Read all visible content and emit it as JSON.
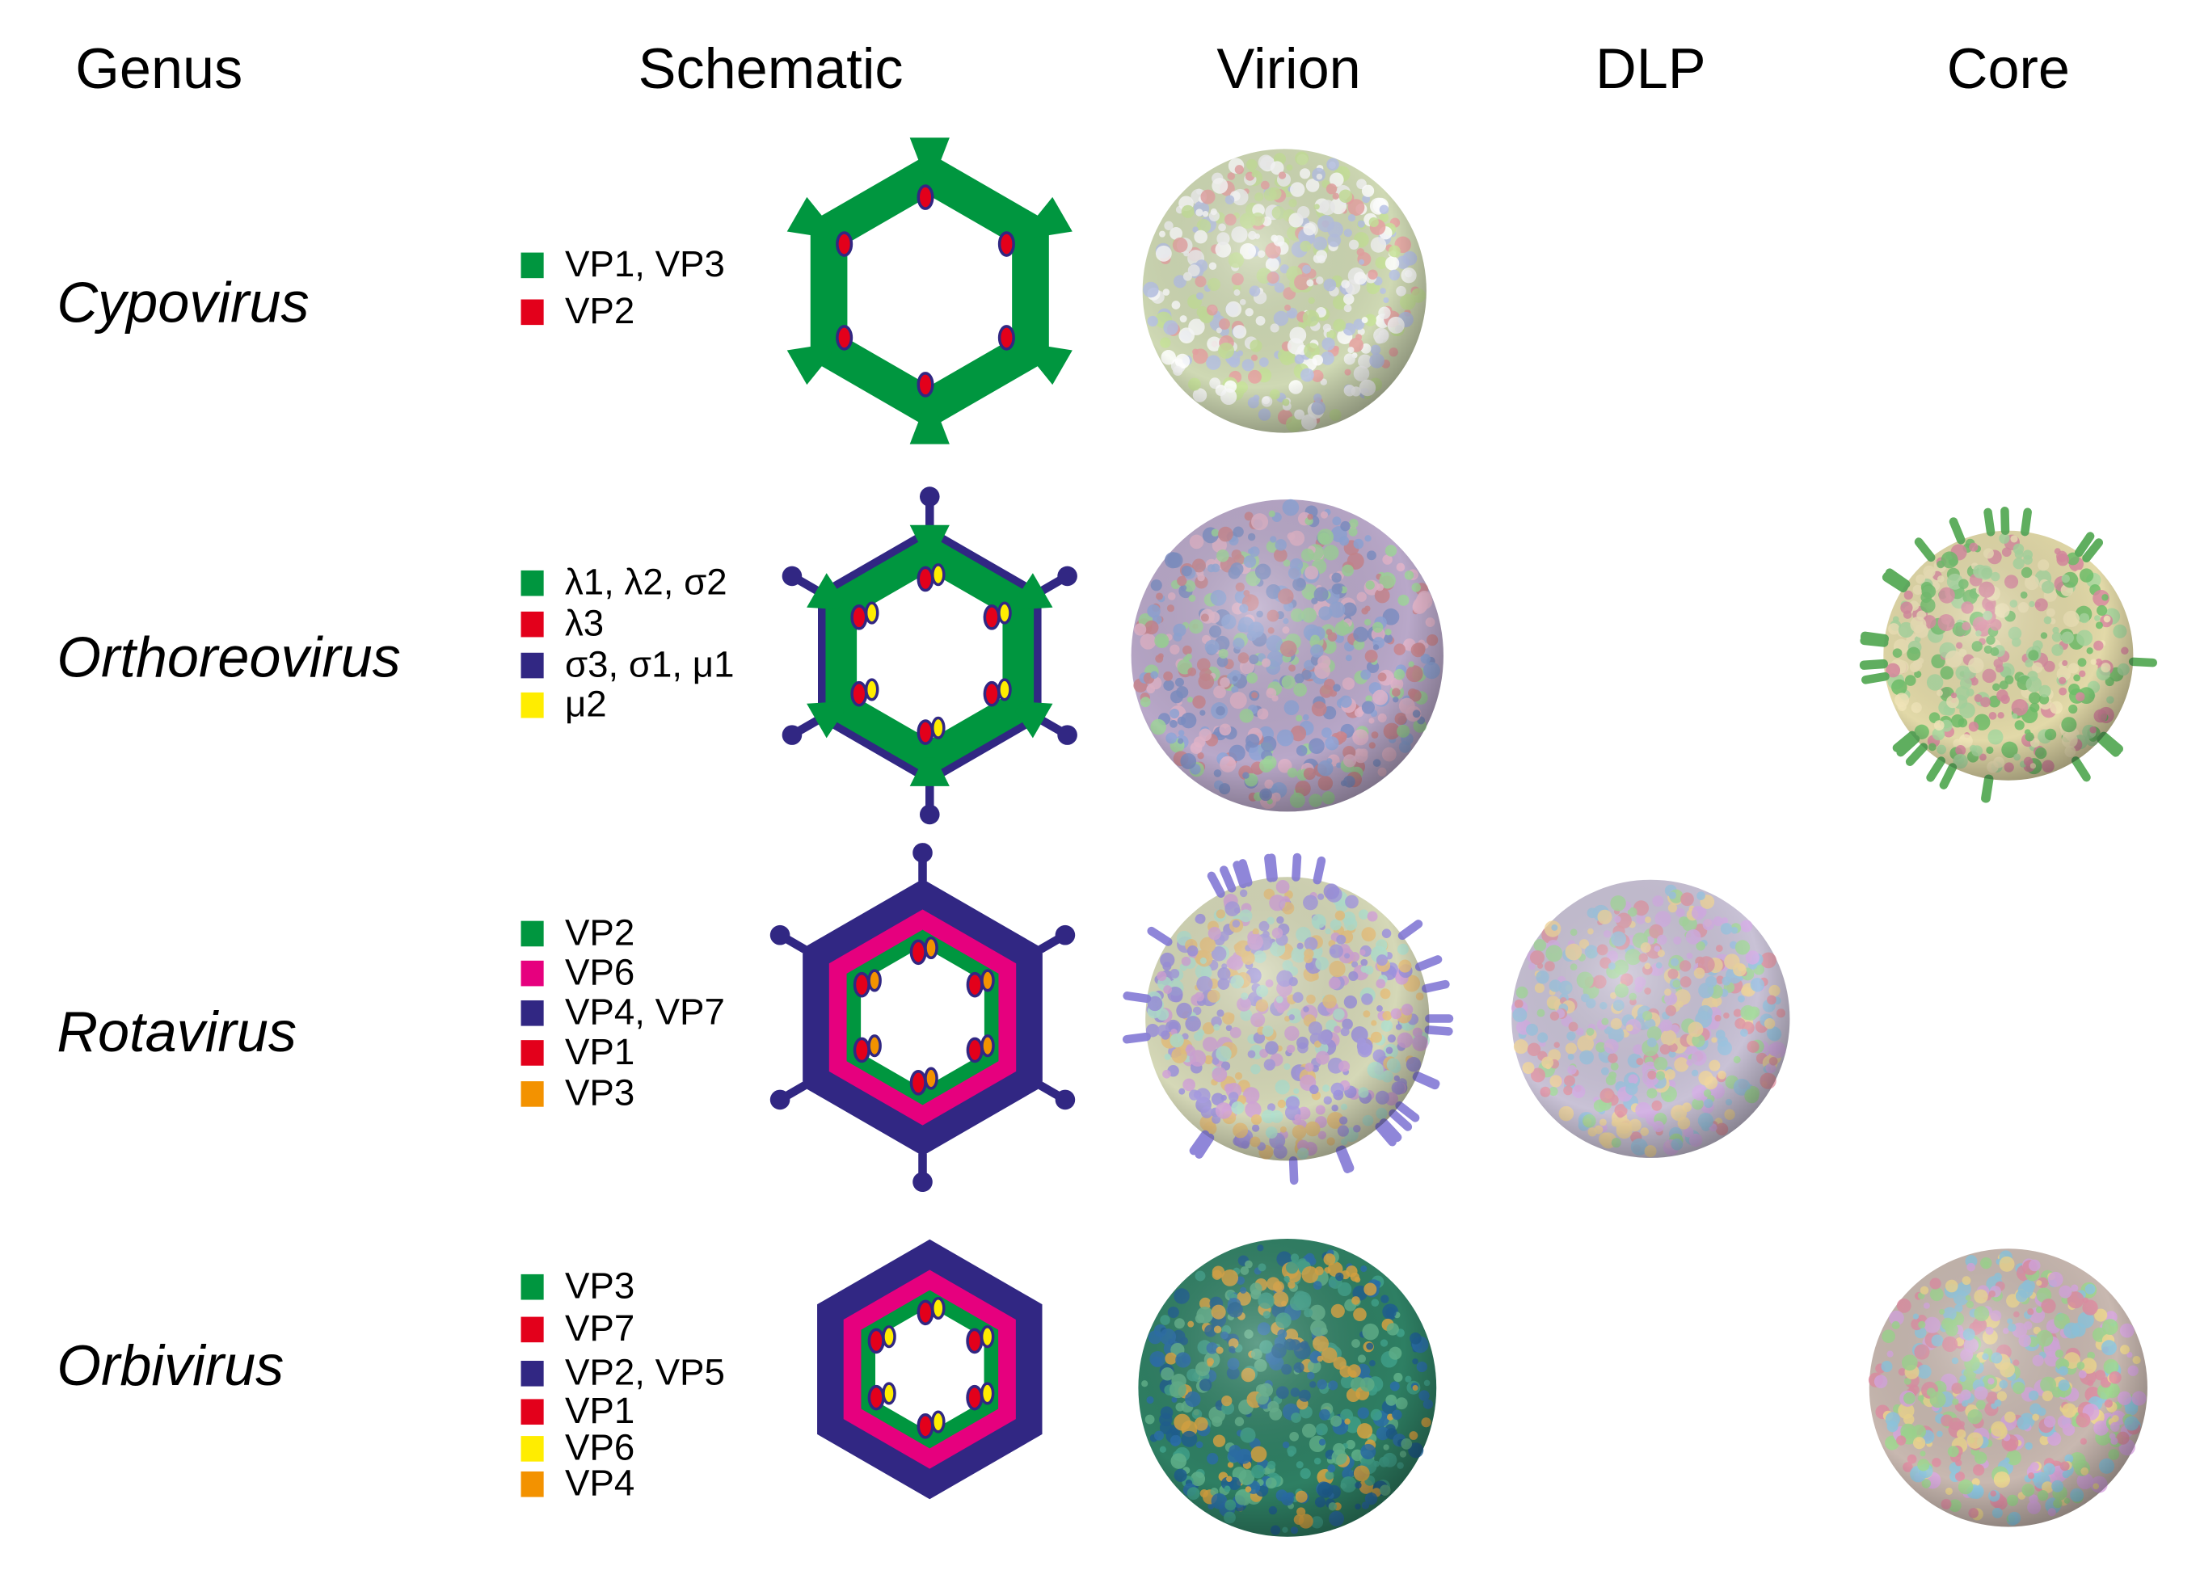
{
  "headers": [
    "Genus",
    "Schematic",
    "Virion",
    "DLP",
    "Core"
  ],
  "rows": [
    {
      "genus": "Cypovirus",
      "legend": [
        {
          "label": "VP1, VP3",
          "color": "#00963f"
        },
        {
          "label": "VP2",
          "color": "#e3001b"
        }
      ]
    },
    {
      "genus": "Orthoreovirus",
      "legend": [
        {
          "label": "λ1, λ2, σ2",
          "color": "#00963f"
        },
        {
          "label": "λ3",
          "color": "#e3001b"
        },
        {
          "label": "σ3, σ1, μ1",
          "color": "#312783"
        },
        {
          "label": "μ2",
          "color": "#ffed00"
        }
      ]
    },
    {
      "genus": "Rotavirus",
      "legend": [
        {
          "label": "VP2",
          "color": "#00963f"
        },
        {
          "label": "VP6",
          "color": "#e6007e"
        },
        {
          "label": "VP4, VP7",
          "color": "#312783"
        },
        {
          "label": "VP1",
          "color": "#e3001b"
        },
        {
          "label": "VP3",
          "color": "#f39200"
        }
      ]
    },
    {
      "genus": "Orbivirus",
      "legend": [
        {
          "label": "VP3",
          "color": "#00963f"
        },
        {
          "label": "VP7",
          "color": "#e3001b"
        },
        {
          "label": "VP2, VP5",
          "color": "#312783"
        },
        {
          "label": "VP1",
          "color": "#e3001b"
        },
        {
          "label": "VP6",
          "color": "#ffed00"
        },
        {
          "label": "VP4",
          "color": "#f39200"
        }
      ]
    }
  ]
}
